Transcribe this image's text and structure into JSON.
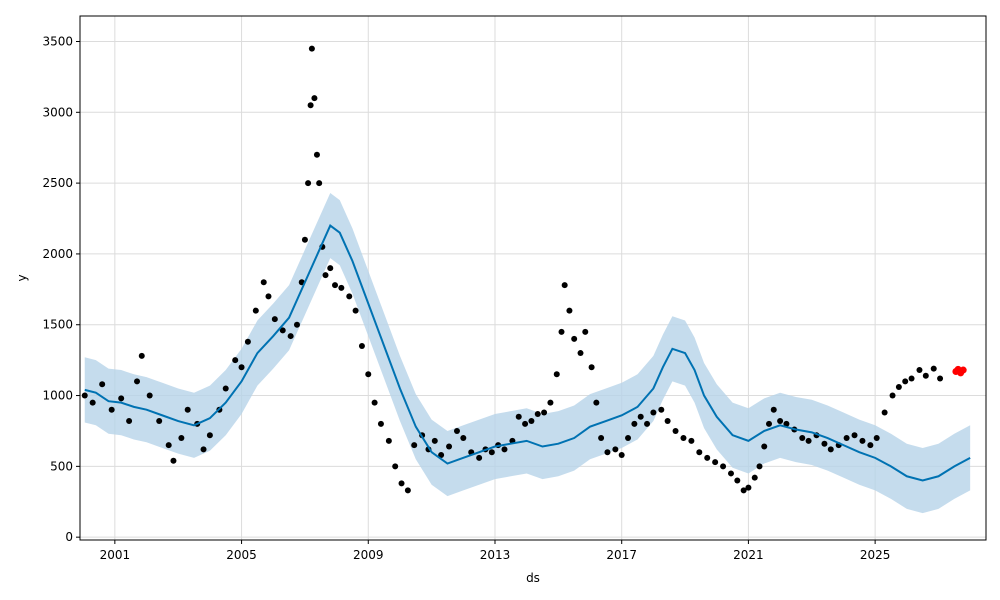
{
  "chart_data": {
    "type": "line",
    "xlabel": "ds",
    "ylabel": "y",
    "grid": true,
    "x_range": [
      1999.9,
      2028.5
    ],
    "ylim": [
      -20,
      3680
    ],
    "x_ticks": [
      "2001",
      "2005",
      "2009",
      "2013",
      "2017",
      "2021",
      "2025"
    ],
    "y_ticks": [
      "0",
      "500",
      "1000",
      "1500",
      "2000",
      "2500",
      "3000",
      "3500"
    ],
    "colors": {
      "observed": "#000000",
      "forecast_line": "#0072B2",
      "uncertainty_band": "#b7d3e8",
      "highlight": "#ff0000",
      "grid": "#dcdcdc"
    },
    "series": [
      {
        "role": "observed",
        "style": "points",
        "points": [
          [
            2000.05,
            1000
          ],
          [
            2000.3,
            950
          ],
          [
            2000.6,
            1080
          ],
          [
            2000.9,
            900
          ],
          [
            2001.2,
            980
          ],
          [
            2001.45,
            820
          ],
          [
            2001.7,
            1100
          ],
          [
            2001.85,
            1280
          ],
          [
            2002.1,
            1000
          ],
          [
            2002.4,
            820
          ],
          [
            2002.7,
            650
          ],
          [
            2002.85,
            540
          ],
          [
            2003.1,
            700
          ],
          [
            2003.3,
            900
          ],
          [
            2003.6,
            800
          ],
          [
            2003.8,
            620
          ],
          [
            2004.0,
            720
          ],
          [
            2004.3,
            900
          ],
          [
            2004.5,
            1050
          ],
          [
            2004.8,
            1250
          ],
          [
            2005.0,
            1200
          ],
          [
            2005.2,
            1380
          ],
          [
            2005.45,
            1600
          ],
          [
            2005.7,
            1800
          ],
          [
            2005.85,
            1700
          ],
          [
            2006.05,
            1540
          ],
          [
            2006.3,
            1460
          ],
          [
            2006.55,
            1420
          ],
          [
            2006.75,
            1500
          ],
          [
            2006.9,
            1800
          ],
          [
            2007.0,
            2100
          ],
          [
            2007.1,
            2500
          ],
          [
            2007.18,
            3050
          ],
          [
            2007.22,
            3450
          ],
          [
            2007.3,
            3100
          ],
          [
            2007.38,
            2700
          ],
          [
            2007.45,
            2500
          ],
          [
            2007.55,
            2050
          ],
          [
            2007.65,
            1850
          ],
          [
            2007.8,
            1900
          ],
          [
            2007.95,
            1780
          ],
          [
            2008.15,
            1760
          ],
          [
            2008.4,
            1700
          ],
          [
            2008.6,
            1600
          ],
          [
            2008.8,
            1350
          ],
          [
            2009.0,
            1150
          ],
          [
            2009.2,
            950
          ],
          [
            2009.4,
            800
          ],
          [
            2009.65,
            680
          ],
          [
            2009.85,
            500
          ],
          [
            2010.05,
            380
          ],
          [
            2010.25,
            330
          ],
          [
            2010.45,
            650
          ],
          [
            2010.7,
            720
          ],
          [
            2010.9,
            620
          ],
          [
            2011.1,
            680
          ],
          [
            2011.3,
            580
          ],
          [
            2011.55,
            640
          ],
          [
            2011.8,
            750
          ],
          [
            2012.0,
            700
          ],
          [
            2012.25,
            600
          ],
          [
            2012.5,
            560
          ],
          [
            2012.7,
            620
          ],
          [
            2012.9,
            600
          ],
          [
            2013.1,
            650
          ],
          [
            2013.3,
            620
          ],
          [
            2013.55,
            680
          ],
          [
            2013.75,
            850
          ],
          [
            2013.95,
            800
          ],
          [
            2014.15,
            820
          ],
          [
            2014.35,
            870
          ],
          [
            2014.55,
            880
          ],
          [
            2014.75,
            950
          ],
          [
            2014.95,
            1150
          ],
          [
            2015.1,
            1450
          ],
          [
            2015.2,
            1780
          ],
          [
            2015.35,
            1600
          ],
          [
            2015.5,
            1400
          ],
          [
            2015.7,
            1300
          ],
          [
            2015.85,
            1450
          ],
          [
            2016.05,
            1200
          ],
          [
            2016.2,
            950
          ],
          [
            2016.35,
            700
          ],
          [
            2016.55,
            600
          ],
          [
            2016.8,
            620
          ],
          [
            2017.0,
            580
          ],
          [
            2017.2,
            700
          ],
          [
            2017.4,
            800
          ],
          [
            2017.6,
            850
          ],
          [
            2017.8,
            800
          ],
          [
            2018.0,
            880
          ],
          [
            2018.25,
            900
          ],
          [
            2018.45,
            820
          ],
          [
            2018.7,
            750
          ],
          [
            2018.95,
            700
          ],
          [
            2019.2,
            680
          ],
          [
            2019.45,
            600
          ],
          [
            2019.7,
            560
          ],
          [
            2019.95,
            530
          ],
          [
            2020.2,
            500
          ],
          [
            2020.45,
            450
          ],
          [
            2020.65,
            400
          ],
          [
            2020.85,
            330
          ],
          [
            2021.0,
            350
          ],
          [
            2021.2,
            420
          ],
          [
            2021.35,
            500
          ],
          [
            2021.5,
            640
          ],
          [
            2021.65,
            800
          ],
          [
            2021.8,
            900
          ],
          [
            2022.0,
            820
          ],
          [
            2022.2,
            800
          ],
          [
            2022.45,
            760
          ],
          [
            2022.7,
            700
          ],
          [
            2022.9,
            680
          ],
          [
            2023.15,
            720
          ],
          [
            2023.4,
            660
          ],
          [
            2023.6,
            620
          ],
          [
            2023.85,
            650
          ],
          [
            2024.1,
            700
          ],
          [
            2024.35,
            720
          ],
          [
            2024.6,
            680
          ],
          [
            2024.85,
            650
          ],
          [
            2025.05,
            700
          ],
          [
            2025.3,
            880
          ],
          [
            2025.55,
            1000
          ],
          [
            2025.75,
            1060
          ],
          [
            2025.95,
            1100
          ],
          [
            2026.15,
            1120
          ],
          [
            2026.4,
            1180
          ],
          [
            2026.6,
            1140
          ],
          [
            2026.85,
            1190
          ],
          [
            2027.05,
            1120
          ]
        ]
      },
      {
        "role": "forecast",
        "style": "line",
        "points": [
          [
            2000.05,
            1040
          ],
          [
            2000.4,
            1020
          ],
          [
            2000.8,
            960
          ],
          [
            2001.2,
            950
          ],
          [
            2001.6,
            920
          ],
          [
            2002.0,
            900
          ],
          [
            2002.5,
            860
          ],
          [
            2003.0,
            820
          ],
          [
            2003.5,
            790
          ],
          [
            2004.0,
            840
          ],
          [
            2004.5,
            950
          ],
          [
            2005.0,
            1100
          ],
          [
            2005.5,
            1300
          ],
          [
            2006.0,
            1420
          ],
          [
            2006.5,
            1550
          ],
          [
            2007.0,
            1800
          ],
          [
            2007.5,
            2050
          ],
          [
            2007.8,
            2200
          ],
          [
            2008.1,
            2150
          ],
          [
            2008.5,
            1950
          ],
          [
            2009.0,
            1650
          ],
          [
            2009.5,
            1350
          ],
          [
            2010.0,
            1050
          ],
          [
            2010.5,
            780
          ],
          [
            2011.0,
            600
          ],
          [
            2011.5,
            520
          ],
          [
            2012.0,
            560
          ],
          [
            2012.5,
            600
          ],
          [
            2013.0,
            640
          ],
          [
            2013.5,
            660
          ],
          [
            2014.0,
            680
          ],
          [
            2014.5,
            640
          ],
          [
            2015.0,
            660
          ],
          [
            2015.5,
            700
          ],
          [
            2016.0,
            780
          ],
          [
            2016.5,
            820
          ],
          [
            2017.0,
            860
          ],
          [
            2017.5,
            920
          ],
          [
            2018.0,
            1050
          ],
          [
            2018.3,
            1200
          ],
          [
            2018.6,
            1330
          ],
          [
            2019.0,
            1300
          ],
          [
            2019.3,
            1180
          ],
          [
            2019.6,
            1000
          ],
          [
            2020.0,
            850
          ],
          [
            2020.5,
            720
          ],
          [
            2021.0,
            680
          ],
          [
            2021.5,
            750
          ],
          [
            2022.0,
            790
          ],
          [
            2022.5,
            760
          ],
          [
            2023.0,
            740
          ],
          [
            2023.5,
            700
          ],
          [
            2024.0,
            650
          ],
          [
            2024.5,
            600
          ],
          [
            2025.0,
            560
          ],
          [
            2025.5,
            500
          ],
          [
            2026.0,
            430
          ],
          [
            2026.5,
            400
          ],
          [
            2027.0,
            430
          ],
          [
            2027.5,
            500
          ],
          [
            2028.0,
            560
          ]
        ]
      },
      {
        "role": "highlight",
        "style": "points",
        "points": [
          [
            2027.55,
            1170
          ],
          [
            2027.62,
            1185
          ],
          [
            2027.7,
            1160
          ],
          [
            2027.78,
            1180
          ]
        ]
      }
    ]
  }
}
